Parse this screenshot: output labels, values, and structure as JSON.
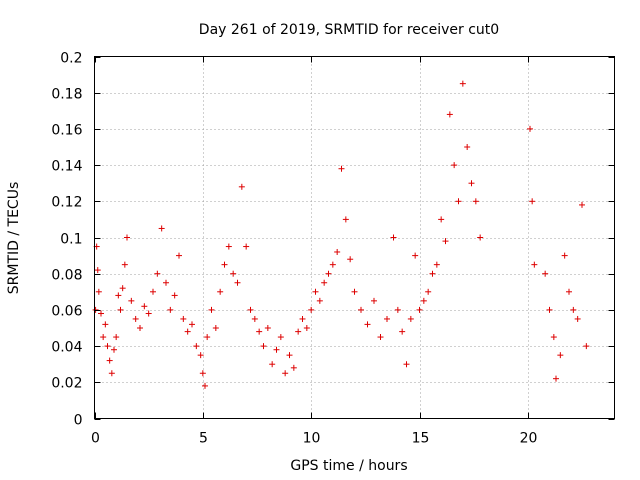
{
  "chart_data": {
    "type": "scatter",
    "title": "Day 261 of 2019, SRMTID for receiver cut0",
    "xlabel": "GPS time / hours",
    "ylabel": "SRMTID / TECUs",
    "xlim": [
      0,
      24
    ],
    "ylim": [
      0,
      0.2
    ],
    "xticks": [
      0,
      5,
      10,
      15,
      20
    ],
    "xtick_labels": [
      "0",
      "5",
      "10",
      "15",
      "20"
    ],
    "yticks": [
      0,
      0.02,
      0.04,
      0.06,
      0.08,
      0.1,
      0.12,
      0.14,
      0.16,
      0.18,
      0.2
    ],
    "ytick_labels": [
      "0",
      "0.02",
      "0.04",
      "0.06",
      "0.08",
      "0.1",
      "0.12",
      "0.14",
      "0.16",
      "0.18",
      "0.2"
    ],
    "grid": true,
    "marker": "+",
    "marker_color": "#dd0000",
    "series": [
      {
        "name": "SRMTID",
        "points": [
          [
            0.05,
            0.06
          ],
          [
            0.1,
            0.095
          ],
          [
            0.15,
            0.082
          ],
          [
            0.2,
            0.07
          ],
          [
            0.3,
            0.058
          ],
          [
            0.4,
            0.045
          ],
          [
            0.5,
            0.052
          ],
          [
            0.6,
            0.04
          ],
          [
            0.7,
            0.032
          ],
          [
            0.8,
            0.025
          ],
          [
            0.9,
            0.038
          ],
          [
            1.0,
            0.045
          ],
          [
            1.1,
            0.068
          ],
          [
            1.2,
            0.06
          ],
          [
            1.3,
            0.072
          ],
          [
            1.4,
            0.085
          ],
          [
            1.5,
            0.1
          ],
          [
            1.7,
            0.065
          ],
          [
            1.9,
            0.055
          ],
          [
            2.1,
            0.05
          ],
          [
            2.3,
            0.062
          ],
          [
            2.5,
            0.058
          ],
          [
            2.7,
            0.07
          ],
          [
            2.9,
            0.08
          ],
          [
            3.1,
            0.105
          ],
          [
            3.3,
            0.075
          ],
          [
            3.5,
            0.06
          ],
          [
            3.7,
            0.068
          ],
          [
            3.9,
            0.09
          ],
          [
            4.1,
            0.055
          ],
          [
            4.3,
            0.048
          ],
          [
            4.5,
            0.052
          ],
          [
            4.7,
            0.04
          ],
          [
            4.9,
            0.035
          ],
          [
            5.0,
            0.025
          ],
          [
            5.1,
            0.018
          ],
          [
            5.2,
            0.045
          ],
          [
            5.4,
            0.06
          ],
          [
            5.6,
            0.05
          ],
          [
            5.8,
            0.07
          ],
          [
            6.0,
            0.085
          ],
          [
            6.2,
            0.095
          ],
          [
            6.4,
            0.08
          ],
          [
            6.6,
            0.075
          ],
          [
            6.8,
            0.128
          ],
          [
            7.0,
            0.095
          ],
          [
            7.2,
            0.06
          ],
          [
            7.4,
            0.055
          ],
          [
            7.6,
            0.048
          ],
          [
            7.8,
            0.04
          ],
          [
            8.0,
            0.05
          ],
          [
            8.2,
            0.03
          ],
          [
            8.4,
            0.038
          ],
          [
            8.6,
            0.045
          ],
          [
            8.8,
            0.025
          ],
          [
            9.0,
            0.035
          ],
          [
            9.2,
            0.028
          ],
          [
            9.4,
            0.048
          ],
          [
            9.6,
            0.055
          ],
          [
            9.8,
            0.05
          ],
          [
            10.0,
            0.06
          ],
          [
            10.2,
            0.07
          ],
          [
            10.4,
            0.065
          ],
          [
            10.6,
            0.075
          ],
          [
            10.8,
            0.08
          ],
          [
            11.0,
            0.085
          ],
          [
            11.2,
            0.092
          ],
          [
            11.4,
            0.138
          ],
          [
            11.6,
            0.11
          ],
          [
            11.8,
            0.088
          ],
          [
            12.0,
            0.07
          ],
          [
            12.3,
            0.06
          ],
          [
            12.6,
            0.052
          ],
          [
            12.9,
            0.065
          ],
          [
            13.2,
            0.045
          ],
          [
            13.5,
            0.055
          ],
          [
            13.8,
            0.1
          ],
          [
            14.0,
            0.06
          ],
          [
            14.2,
            0.048
          ],
          [
            14.4,
            0.03
          ],
          [
            14.6,
            0.055
          ],
          [
            14.8,
            0.09
          ],
          [
            15.0,
            0.06
          ],
          [
            15.2,
            0.065
          ],
          [
            15.4,
            0.07
          ],
          [
            15.6,
            0.08
          ],
          [
            15.8,
            0.085
          ],
          [
            16.0,
            0.11
          ],
          [
            16.2,
            0.098
          ],
          [
            16.4,
            0.168
          ],
          [
            16.6,
            0.14
          ],
          [
            16.8,
            0.12
          ],
          [
            17.0,
            0.185
          ],
          [
            17.2,
            0.15
          ],
          [
            17.4,
            0.13
          ],
          [
            17.6,
            0.12
          ],
          [
            17.8,
            0.1
          ],
          [
            20.1,
            0.16
          ],
          [
            20.2,
            0.12
          ],
          [
            20.3,
            0.085
          ],
          [
            20.8,
            0.08
          ],
          [
            21.0,
            0.06
          ],
          [
            21.2,
            0.045
          ],
          [
            21.3,
            0.022
          ],
          [
            21.5,
            0.035
          ],
          [
            21.7,
            0.09
          ],
          [
            21.9,
            0.07
          ],
          [
            22.1,
            0.06
          ],
          [
            22.3,
            0.055
          ],
          [
            22.5,
            0.118
          ],
          [
            22.7,
            0.04
          ]
        ]
      }
    ]
  }
}
